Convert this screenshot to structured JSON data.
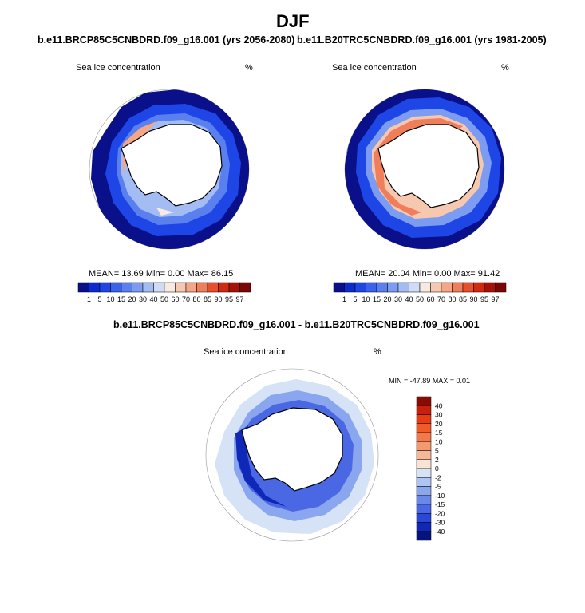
{
  "page": {
    "title": "DJF",
    "diff_title": "b.e11.BRCP85C5CNBDRD.f09_g16.001 - b.e11.B20TRC5CNBDRD.f09_g16.001"
  },
  "panels": [
    {
      "title": "b.e11.BRCP85C5CNBDRD.f09_g16.001 (yrs 2056-2080)",
      "variable": "Sea ice concentration",
      "units": "%",
      "stats": "MEAN=  13.69  Min=   0.00  Max=  86.15"
    },
    {
      "title": "b.e11.B20TRC5CNBDRD.f09_g16.001 (yrs 1981-2005)",
      "variable": "Sea ice concentration",
      "units": "%",
      "stats": "MEAN=  20.04  Min=   0.00  Max=  91.42"
    }
  ],
  "diff_panel": {
    "variable": "Sea ice concentration",
    "units": "%",
    "stats": "MIN = -47.89 MAX =   0.01"
  },
  "colorbar_abs": {
    "labels": [
      "1",
      "5",
      "10",
      "15",
      "20",
      "30",
      "40",
      "50",
      "60",
      "70",
      "80",
      "85",
      "90",
      "95",
      "97"
    ],
    "colors": [
      "#0a0f8a",
      "#0b2bd0",
      "#1e46e6",
      "#3a62ee",
      "#5a80f0",
      "#7c9cf2",
      "#a3bdf4",
      "#cfdcf6",
      "#f8eae2",
      "#f6c8b0",
      "#f4a686",
      "#f07e5a",
      "#e8502c",
      "#d22a10",
      "#a8100a",
      "#7a0606"
    ]
  },
  "colorbar_diff": {
    "labels": [
      "40",
      "30",
      "20",
      "15",
      "10",
      "5",
      "2",
      "0",
      "-2",
      "-5",
      "-10",
      "-15",
      "-20",
      "-30",
      "-40"
    ],
    "colors": [
      "#8a0a04",
      "#c8200a",
      "#e83c12",
      "#f25a28",
      "#f47848",
      "#f4986e",
      "#f6b898",
      "#f8e4d4",
      "#d6e2f6",
      "#aec4f2",
      "#8aa6ee",
      "#6a88ea",
      "#4a68e4",
      "#2a48d8",
      "#1028b8",
      "#06127e"
    ]
  },
  "colors": {
    "land_fill": "#ffffff",
    "coast": "#000000",
    "ocean_ice_dark": "#0b2bd0",
    "ocean_ice_light": "#a3bdf4"
  }
}
